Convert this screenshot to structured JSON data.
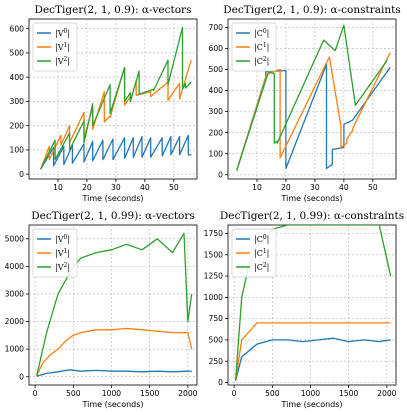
{
  "colors": {
    "blue": "#1f77b4",
    "orange": "#ff7f0e",
    "green": "#2ca02c"
  },
  "chart_data": [
    {
      "type": "line",
      "title": "DecTiger(2, 1, 0.9):  α-vectors",
      "xlabel": "Time (seconds)",
      "ylabel": "",
      "xlim": [
        0,
        58
      ],
      "ylim": [
        -20,
        640
      ],
      "xticks": [
        10,
        20,
        30,
        40,
        50
      ],
      "yticks": [
        0,
        100,
        200,
        300,
        400,
        500,
        600
      ],
      "grid": true,
      "legend_position": "upper-left",
      "series": [
        {
          "name": "|V^0|",
          "color": "blue",
          "x": [
            4,
            8.5,
            8.5,
            12,
            12,
            15,
            15,
            19,
            19,
            22,
            22,
            25.5,
            25.5,
            29,
            29,
            33,
            33,
            36,
            36,
            39,
            39,
            42,
            42,
            46,
            46,
            49,
            49,
            52,
            52,
            55,
            55,
            56
          ],
          "y": [
            20,
            110,
            35,
            115,
            40,
            120,
            45,
            125,
            50,
            135,
            55,
            140,
            60,
            145,
            60,
            150,
            65,
            150,
            70,
            155,
            70,
            150,
            70,
            150,
            75,
            155,
            80,
            155,
            80,
            160,
            80,
            80
          ]
        },
        {
          "name": "|V^1|",
          "color": "orange",
          "x": [
            4,
            7,
            7,
            11,
            11,
            14,
            14,
            19,
            19,
            22,
            22,
            26,
            26,
            28,
            28,
            33,
            33,
            35,
            35,
            37,
            37,
            42,
            42,
            48,
            48,
            52,
            52,
            56
          ],
          "y": [
            20,
            115,
            60,
            160,
            120,
            200,
            130,
            255,
            150,
            275,
            185,
            340,
            215,
            240,
            235,
            440,
            285,
            320,
            300,
            385,
            325,
            340,
            320,
            380,
            305,
            375,
            310,
            470
          ]
        },
        {
          "name": "|V^2|",
          "color": "green",
          "x": [
            4,
            9,
            9,
            14,
            14,
            19,
            19,
            22,
            22,
            28,
            28,
            33,
            33,
            35,
            35,
            38,
            38,
            43,
            43,
            48,
            48,
            53,
            53,
            54,
            54,
            56
          ],
          "y": [
            20,
            140,
            60,
            170,
            100,
            220,
            130,
            290,
            200,
            370,
            250,
            440,
            300,
            335,
            300,
            425,
            330,
            350,
            345,
            470,
            370,
            605,
            350,
            375,
            355,
            380
          ]
        }
      ]
    },
    {
      "type": "line",
      "title": "DecTiger(2, 1, 0.9):  α-constraints",
      "xlabel": "Time (seconds)",
      "ylabel": "",
      "xlim": [
        0,
        58
      ],
      "ylim": [
        -20,
        740
      ],
      "xticks": [
        10,
        20,
        30,
        40,
        50
      ],
      "yticks": [
        0,
        100,
        200,
        300,
        400,
        500,
        600,
        700
      ],
      "grid": true,
      "legend_position": "upper-left",
      "series": [
        {
          "name": "|C^0|",
          "color": "blue",
          "x": [
            3,
            13,
            13,
            20,
            20,
            34,
            34,
            36,
            36,
            40,
            40,
            43,
            43,
            56
          ],
          "y": [
            20,
            465,
            490,
            495,
            30,
            525,
            30,
            50,
            120,
            130,
            240,
            260,
            260,
            510
          ]
        },
        {
          "name": "|C^1|",
          "color": "orange",
          "x": [
            3,
            13,
            13,
            18,
            18,
            35,
            35,
            39,
            39,
            41,
            41,
            43,
            43,
            56
          ],
          "y": [
            20,
            460,
            475,
            500,
            80,
            560,
            560,
            230,
            130,
            150,
            170,
            210,
            220,
            580
          ]
        },
        {
          "name": "|C^2|",
          "color": "green",
          "x": [
            3,
            14,
            14,
            16,
            16,
            17,
            17,
            33,
            33,
            37,
            37,
            40,
            40,
            44,
            44,
            55
          ],
          "y": [
            20,
            490,
            490,
            480,
            150,
            160,
            150,
            640,
            640,
            590,
            590,
            710,
            710,
            330,
            330,
            545
          ]
        }
      ]
    },
    {
      "type": "line",
      "title": "DecTiger(2, 1, 0.99):  α-vectors",
      "xlabel": "Time (seconds)",
      "ylabel": "",
      "xlim": [
        -80,
        2120
      ],
      "ylim": [
        -300,
        5500
      ],
      "xticks": [
        0,
        500,
        1000,
        1500,
        2000
      ],
      "yticks": [
        0,
        1000,
        2000,
        3000,
        4000,
        5000
      ],
      "grid": true,
      "legend_position": "upper-left",
      "series": [
        {
          "name": "|V^0|",
          "color": "blue",
          "x": [
            20,
            150,
            300,
            450,
            600,
            800,
            1000,
            1200,
            1400,
            1600,
            1800,
            2000,
            2050
          ],
          "y": [
            20,
            120,
            180,
            250,
            200,
            230,
            200,
            200,
            180,
            200,
            180,
            200,
            200
          ]
        },
        {
          "name": "|V^1|",
          "color": "orange",
          "x": [
            20,
            100,
            200,
            300,
            400,
            500,
            600,
            800,
            1000,
            1200,
            1400,
            1600,
            1800,
            2000,
            2050
          ],
          "y": [
            20,
            500,
            800,
            1000,
            1300,
            1500,
            1600,
            1700,
            1700,
            1750,
            1700,
            1650,
            1600,
            1600,
            1000
          ]
        },
        {
          "name": "|V^2|",
          "color": "green",
          "x": [
            20,
            150,
            300,
            400,
            500,
            600,
            800,
            1000,
            1200,
            1400,
            1600,
            1800,
            1950,
            2000,
            2050
          ],
          "y": [
            20,
            1600,
            3000,
            3500,
            4000,
            4300,
            4500,
            4600,
            4800,
            4600,
            5000,
            4500,
            5200,
            2000,
            3000
          ]
        }
      ]
    },
    {
      "type": "line",
      "title": "DecTiger(2, 1, 0.99):  α-constraints",
      "xlabel": "Time (seconds)",
      "ylabel": "",
      "xlim": [
        -80,
        2120
      ],
      "ylim": [
        -30,
        1850
      ],
      "xticks": [
        0,
        500,
        1000,
        1500,
        2000
      ],
      "yticks": [
        0,
        250,
        500,
        750,
        1000,
        1250,
        1500,
        1750
      ],
      "grid": true,
      "legend_position": "upper-left",
      "series": [
        {
          "name": "|C^0|",
          "color": "blue",
          "x": [
            20,
            100,
            300,
            500,
            700,
            900,
            1100,
            1300,
            1500,
            1700,
            1900,
            2050
          ],
          "y": [
            20,
            300,
            450,
            500,
            500,
            480,
            500,
            520,
            480,
            500,
            480,
            500
          ]
        },
        {
          "name": "|C^1|",
          "color": "orange",
          "x": [
            20,
            100,
            300,
            500,
            700,
            900,
            1100,
            1300,
            1500,
            1700,
            1900,
            2050
          ],
          "y": [
            20,
            500,
            700,
            700,
            700,
            700,
            700,
            700,
            700,
            700,
            700,
            700
          ]
        },
        {
          "name": "|C^2|",
          "color": "green",
          "x": [
            20,
            100,
            200,
            300,
            500,
            700,
            900,
            1100,
            1300,
            1500,
            1700,
            1900,
            2050
          ],
          "y": [
            20,
            1000,
            1400,
            1600,
            1800,
            1850,
            1850,
            1850,
            1850,
            1850,
            1850,
            1850,
            1250
          ]
        }
      ]
    }
  ]
}
